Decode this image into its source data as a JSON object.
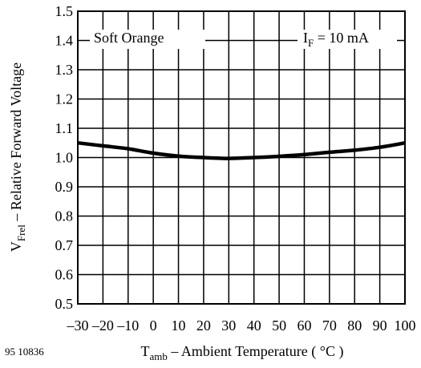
{
  "figure_id": "95 10836",
  "chart_data": {
    "type": "line",
    "title": "",
    "xlabel": {
      "main": "T",
      "sub": "amb",
      "rest": " – Ambient Temperature ( °C )"
    },
    "ylabel": {
      "main": "V",
      "sub": "Frel",
      "rest": " – Relative Forward Voltage"
    },
    "xlim": [
      -30,
      100
    ],
    "ylim": [
      0.5,
      1.5
    ],
    "x_ticks": [
      -30,
      -20,
      -10,
      0,
      10,
      20,
      30,
      40,
      50,
      60,
      70,
      80,
      90,
      100
    ],
    "x_tick_labels": [
      "–30",
      "–20",
      "–10",
      "0",
      "10",
      "20",
      "30",
      "40",
      "50",
      "60",
      "70",
      "80",
      "90",
      "100"
    ],
    "y_ticks": [
      0.5,
      0.6,
      0.7,
      0.8,
      0.9,
      1.0,
      1.1,
      1.2,
      1.3,
      1.4,
      1.5
    ],
    "y_tick_labels": [
      "0.5",
      "0.6",
      "0.7",
      "0.8",
      "0.9",
      "1.0",
      "1.1",
      "1.2",
      "1.3",
      "1.4",
      "1.5"
    ],
    "grid": true,
    "annotations": {
      "series_label": "Soft Orange",
      "condition_main": "I",
      "condition_sub": "F",
      "condition_rest": " = 10 mA"
    },
    "series": [
      {
        "x": [
          -30,
          -20,
          -10,
          0,
          10,
          20,
          30,
          40,
          50,
          60,
          70,
          80,
          90,
          100
        ],
        "values": [
          1.05,
          1.04,
          1.03,
          1.015,
          1.005,
          1.0,
          0.997,
          1.0,
          1.004,
          1.01,
          1.018,
          1.025,
          1.035,
          1.05
        ]
      }
    ]
  }
}
